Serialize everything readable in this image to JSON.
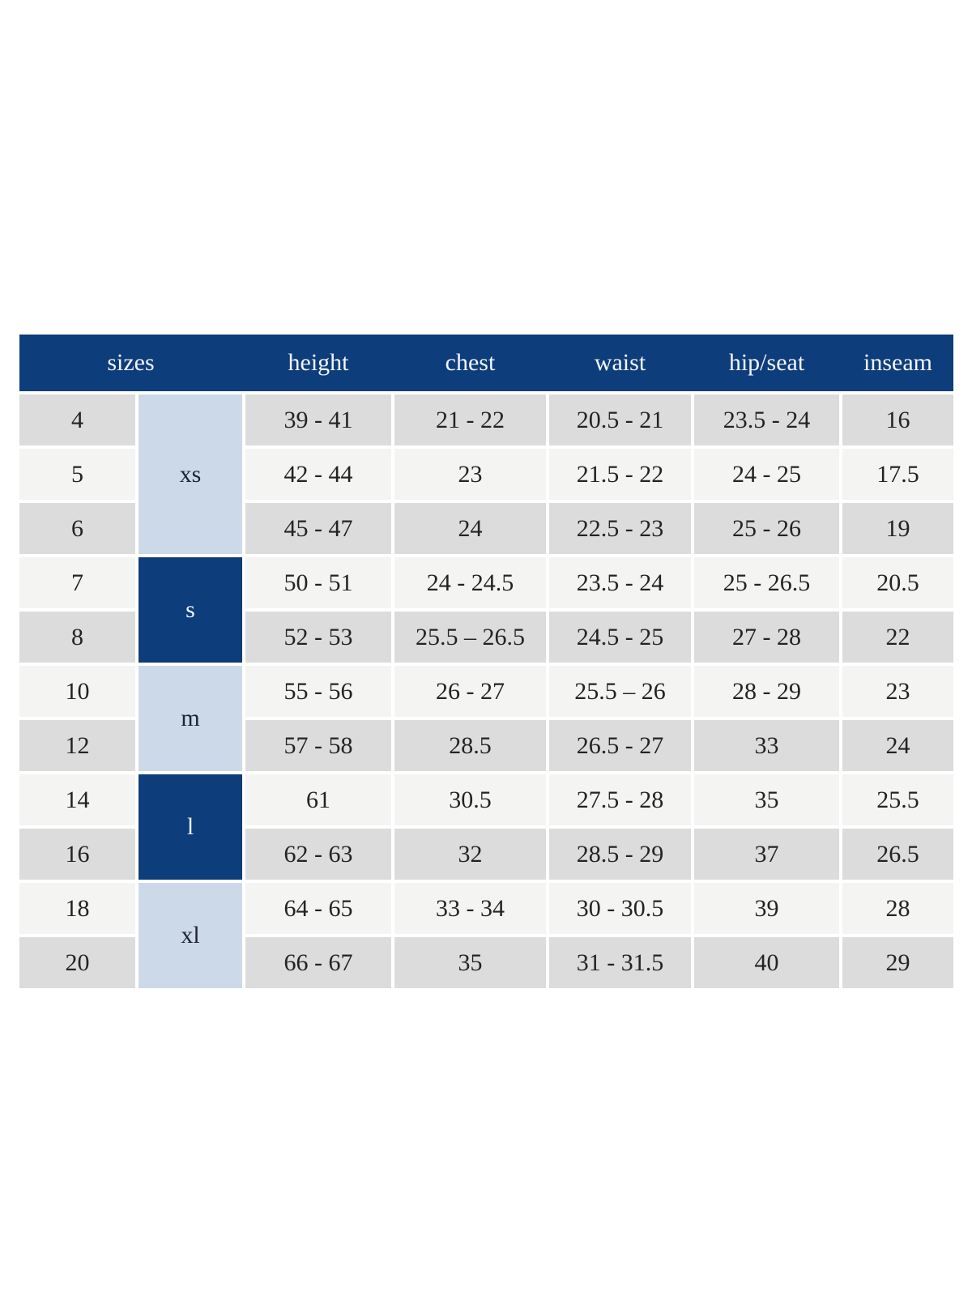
{
  "chart_data": {
    "type": "table",
    "columns": [
      "sizes",
      "height",
      "chest",
      "waist",
      "hip/seat",
      "inseam"
    ],
    "size_groups": [
      {
        "label": "xs",
        "rows": 3,
        "variant": "light"
      },
      {
        "label": "s",
        "rows": 2,
        "variant": "dark"
      },
      {
        "label": "m",
        "rows": 2,
        "variant": "light"
      },
      {
        "label": "l",
        "rows": 2,
        "variant": "dark"
      },
      {
        "label": "xl",
        "rows": 2,
        "variant": "light"
      }
    ],
    "rows": [
      {
        "size": "4",
        "group": "xs",
        "height": "39 - 41",
        "chest": "21 - 22",
        "waist": "20.5 - 21",
        "hip_seat": "23.5 - 24",
        "inseam": "16"
      },
      {
        "size": "5",
        "group": "xs",
        "height": "42 - 44",
        "chest": "23",
        "waist": "21.5 - 22",
        "hip_seat": "24 - 25",
        "inseam": "17.5"
      },
      {
        "size": "6",
        "group": "xs",
        "height": "45 - 47",
        "chest": "24",
        "waist": "22.5 - 23",
        "hip_seat": "25 - 26",
        "inseam": "19"
      },
      {
        "size": "7",
        "group": "s",
        "height": "50 - 51",
        "chest": "24 - 24.5",
        "waist": "23.5 - 24",
        "hip_seat": "25 - 26.5",
        "inseam": "20.5"
      },
      {
        "size": "8",
        "group": "s",
        "height": "52 - 53",
        "chest": "25.5 – 26.5",
        "waist": "24.5 - 25",
        "hip_seat": "27 - 28",
        "inseam": "22"
      },
      {
        "size": "10",
        "group": "m",
        "height": "55 - 56",
        "chest": "26 - 27",
        "waist": "25.5 – 26",
        "hip_seat": "28 - 29",
        "inseam": "23"
      },
      {
        "size": "12",
        "group": "m",
        "height": "57 - 58",
        "chest": "28.5",
        "waist": "26.5 - 27",
        "hip_seat": "33",
        "inseam": "24"
      },
      {
        "size": "14",
        "group": "l",
        "height": "61",
        "chest": "30.5",
        "waist": "27.5 - 28",
        "hip_seat": "35",
        "inseam": "25.5"
      },
      {
        "size": "16",
        "group": "l",
        "height": "62 - 63",
        "chest": "32",
        "waist": "28.5 - 29",
        "hip_seat": "37",
        "inseam": "26.5"
      },
      {
        "size": "18",
        "group": "xl",
        "height": "64 - 65",
        "chest": "33 - 34",
        "waist": "30 - 30.5",
        "hip_seat": "39",
        "inseam": "28"
      },
      {
        "size": "20",
        "group": "xl",
        "height": "66 - 67",
        "chest": "35",
        "waist": "31 - 31.5",
        "hip_seat": "40",
        "inseam": "29"
      }
    ]
  },
  "colors": {
    "header_bg": "#0d3d7a",
    "header_text": "#f3f6fa",
    "group_light_bg": "#ccd9e8",
    "group_light_text": "#1e2430",
    "group_dark_bg": "#0d3d7a",
    "group_dark_text": "#f3f6fa",
    "row_gray": "#dcdcdc",
    "row_lite": "#f4f4f3",
    "cell_text": "#232323",
    "gap_color": "#ffffff"
  }
}
